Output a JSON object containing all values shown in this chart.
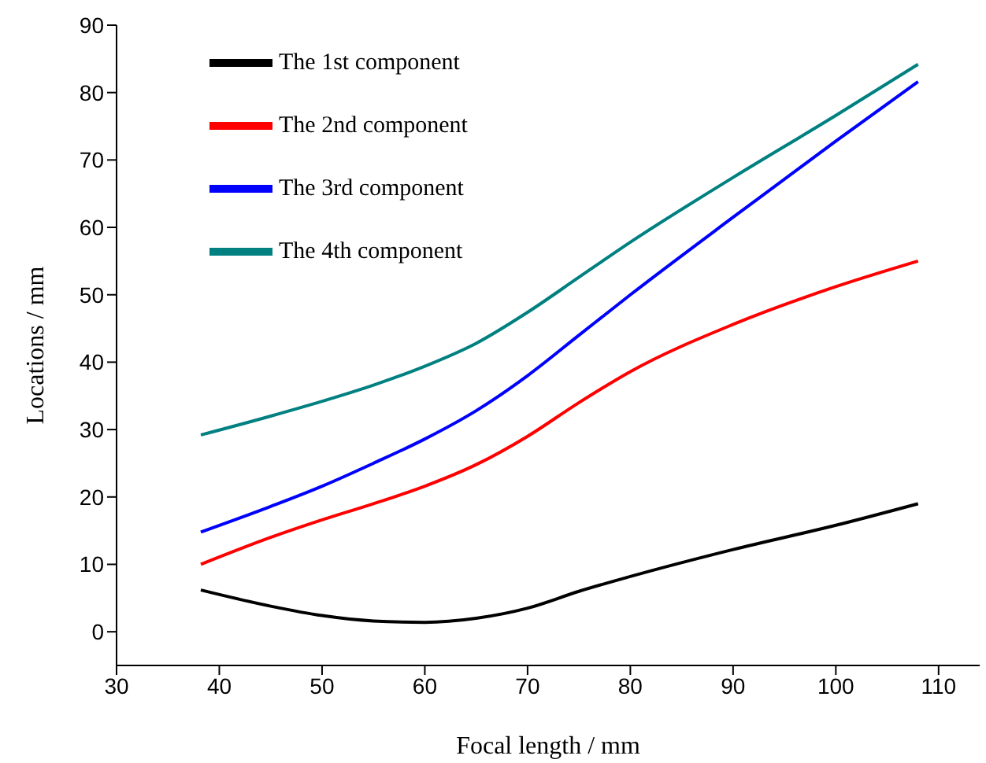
{
  "chart_data": {
    "type": "line",
    "xlabel": "Focal length / mm",
    "ylabel": "Locations / mm",
    "xlim": [
      30,
      114
    ],
    "xticks": [
      30,
      40,
      50,
      60,
      70,
      80,
      90,
      100,
      110
    ],
    "ylim": [
      -5,
      90
    ],
    "yticks": [
      0,
      10,
      20,
      30,
      40,
      50,
      60,
      70,
      80,
      90
    ],
    "grid": false,
    "legend": "top left",
    "marker": "none",
    "line_style": "solid",
    "series": [
      {
        "name": "The 1st component",
        "color": "#000000",
        "x": [
          38.2,
          45,
          50,
          55,
          60,
          65,
          70,
          75,
          80,
          90,
          100,
          108
        ],
        "values": [
          6.2,
          3.8,
          2.4,
          1.6,
          1.4,
          2.0,
          3.5,
          6,
          8.2,
          12.2,
          15.8,
          19
        ]
      },
      {
        "name": "The 2nd component",
        "color": "#ff0000",
        "x": [
          38.2,
          45,
          50,
          55,
          60,
          65,
          70,
          75,
          80,
          90,
          100,
          108
        ],
        "values": [
          10,
          14,
          16.6,
          19,
          21.6,
          24.8,
          29,
          34,
          38.6,
          45.6,
          51.2,
          55
        ]
      },
      {
        "name": "The 3rd component",
        "color": "#0000ff",
        "x": [
          38.2,
          45,
          50,
          55,
          60,
          65,
          70,
          75,
          80,
          90,
          100,
          108
        ],
        "values": [
          14.8,
          18.6,
          21.6,
          25,
          28.6,
          32.8,
          38,
          44,
          50,
          61.5,
          72.8,
          81.6
        ]
      },
      {
        "name": "The 4th component",
        "color": "#008080",
        "x": [
          38.2,
          45,
          50,
          55,
          60,
          65,
          70,
          75,
          80,
          90,
          100,
          108
        ],
        "values": [
          29.2,
          32,
          34.2,
          36.6,
          39.4,
          42.8,
          47.4,
          52.6,
          57.8,
          67.4,
          76.6,
          84.2
        ]
      }
    ]
  }
}
